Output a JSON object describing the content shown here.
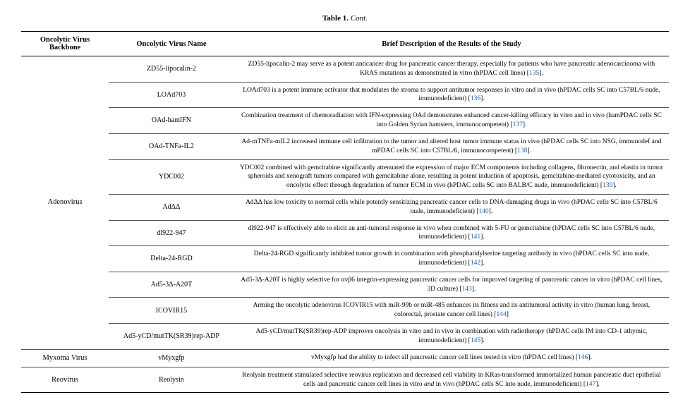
{
  "title_prefix": "Table 1.",
  "title_suffix": "Cont.",
  "headers": {
    "backbone": "Oncolytic Virus Backbone",
    "name": "Oncolytic Virus Name",
    "desc": "Brief Description of the Results of the Study"
  },
  "groups": [
    {
      "backbone": "Adenovirus",
      "rows": [
        {
          "name": "ZD55-lipocalin-2",
          "desc": "ZD55-lipocalin-2 may serve as a potent anticancer drug for pancreatic cancer therapy, especially for patients who have pancreatic adenocarcinoma with KRAS mutations as demonstrated in vitro (hPDAC cell lines) [",
          "ref": "135",
          "tail": "]."
        },
        {
          "name": "LOAd703",
          "desc": "LOAd703 is a potent immune activator that modulates the stroma to support antitumor responses in vitro and in vivo (hPDAC cells SC into C57BL/6 nude, immunodeficient) [",
          "ref": "136",
          "tail": "]."
        },
        {
          "name": "OAd-hamIFN",
          "desc": "Combination treatment of chemoradiation with IFN-expressing OAd demonstrates enhanced cancer-killing efficacy in vitro and in vivo (hamPDAC cells SC into Golden Syrian hamsters, immunocompetent) [",
          "ref": "137",
          "tail": "]."
        },
        {
          "name": "OAd-TNFa-IL2",
          "desc": "Ad-mTNFa-mIL2 increased immune cell infiltration to the tumor and altered host tumor immune status in vivo (hPDAC cells SC into NSG, immunodef and mPDAC cells SC into C57BL/6, immunocompetent) [",
          "ref": "138",
          "tail": "]."
        },
        {
          "name": "YDC002",
          "desc": "YDC002 combined with gemcitabine significantly attenuated the expression of major ECM components including collagens, fibronectin, and elastin in tumor spheroids and xenograft tumors compared with gemcitabine alone, resulting in potent induction of apoptosis, gemcitabine-mediated cytotoxicity, and an oncolytic effect through degradation of tumor ECM in vivo (hPDAC cells SC into BALB/C nude, immunodeficient) [",
          "ref": "139",
          "tail": "]."
        },
        {
          "name": "AdΔΔ",
          "desc": "AdΔΔ has low toxicity to normal cells while potently sensitizing pancreatic cancer cells to DNA-damaging drugs in vivo (hPDAC cells SC into C57BL/6 nude, immunodeficient) [",
          "ref": "140",
          "tail": "]."
        },
        {
          "name": "dl922-947",
          "desc": "dl922-947 is effectively able to elicit an anti-tumoral response in vivo when combined with 5-FU or gemcitabine (hPDAC cells SC into C57BL/6 nude, immunodeficient) [",
          "ref": "141",
          "tail": "]."
        },
        {
          "name": "Delta-24-RGD",
          "desc": "Delta-24-RGD significantly inhibited tumor growth in combination with phosphatidylserine targeting antibody in vivo (hPDAC cells SC into nude, immunodeficient) [",
          "ref": "142",
          "tail": "]."
        },
        {
          "name": "Ad5-3Δ-A20T",
          "desc": "Ad5-3Δ-A20T is highly selective for αvβ6 integrin-expressing pancreatic cancer cells for improved targeting of pancreatic cancer in vitro (hPDAC cell lines, 3D culture) [",
          "ref": "143",
          "tail": "]."
        },
        {
          "name": "ICOVIR15",
          "desc": "Arming the oncolytic adenovirus ICOVIR15 with miR-99b or miR-485 enhances its fitness and its antitumoral activity in vitro (human lung, breast, colorectal, prostate cancer cell lines) [",
          "ref": "144",
          "tail": "]"
        },
        {
          "name": "Ad5-yCD/mutTK(SR39)rep-ADP",
          "desc": "Ad5-yCD/mutTK(SR39)rep-ADP improves oncolysis in vitro and in vivo in combination with radiotherapy (hPDAC cells IM into CD-1 athymic, immunodeficient) [",
          "ref": "145",
          "tail": "]."
        }
      ]
    },
    {
      "backbone": "Myxoma Virus",
      "rows": [
        {
          "name": "vMyxgfp",
          "desc": "vMyxgfp had the ability to infect all pancreatic cancer cell lines tested in vitro (hPDAC cell lines) [",
          "ref": "146",
          "tail": "]."
        }
      ]
    },
    {
      "backbone": "Reovirus",
      "rows": [
        {
          "name": "Reolysin",
          "desc_html": "Reolysin treatment stimulated selective reovirus replication and decreased cell viability in KRas-transformed immortalized human pancreatic duct epithelial cells and pancreatic cancer cell lines in vitro <span class=\"ital\">and</span> in vivo (hPDAC cells SC into nude, immunodeficient) [",
          "ref": "147",
          "tail": "]."
        }
      ]
    }
  ]
}
